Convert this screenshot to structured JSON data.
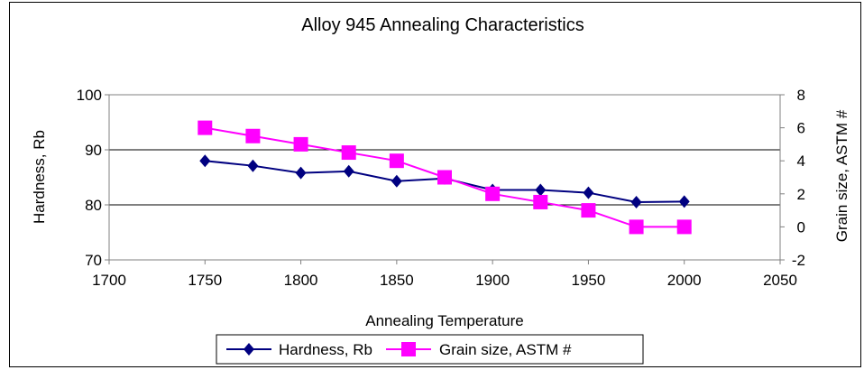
{
  "chart_data": {
    "type": "line",
    "title": "Alloy 945 Annealing Characteristics",
    "xlabel": "Annealing Temperature",
    "ylabel": "Hardness, Rb",
    "y2label": "Grain size, ASTM #",
    "xlim": [
      1700,
      2050
    ],
    "ylim": [
      70,
      100
    ],
    "y2lim": [
      -2,
      8
    ],
    "x_ticks": [
      "1700",
      "1750",
      "1800",
      "1850",
      "1900",
      "1950",
      "2000",
      "2050"
    ],
    "y_ticks": [
      "70",
      "80",
      "90",
      "100"
    ],
    "y2_ticks": [
      "-2",
      "0",
      "2",
      "4",
      "6",
      "8"
    ],
    "x": [
      1750,
      1775,
      1800,
      1825,
      1850,
      1875,
      1900,
      1925,
      1950,
      1975,
      2000
    ],
    "series": [
      {
        "name": "Hardness, Rb",
        "axis": "left",
        "color": "#000080",
        "marker": "diamond",
        "values": [
          88,
          87.1,
          85.8,
          86.1,
          84.3,
          84.8,
          82.7,
          82.7,
          82.2,
          80.5,
          80.6
        ]
      },
      {
        "name": "Grain size, ASTM #",
        "axis": "right",
        "color": "#ff00ff",
        "marker": "square",
        "values": [
          6,
          5.5,
          5,
          4.5,
          4,
          3,
          2,
          1.5,
          1,
          0,
          0
        ]
      }
    ],
    "grid": "horizontal major lines",
    "legend_position": "bottom"
  }
}
